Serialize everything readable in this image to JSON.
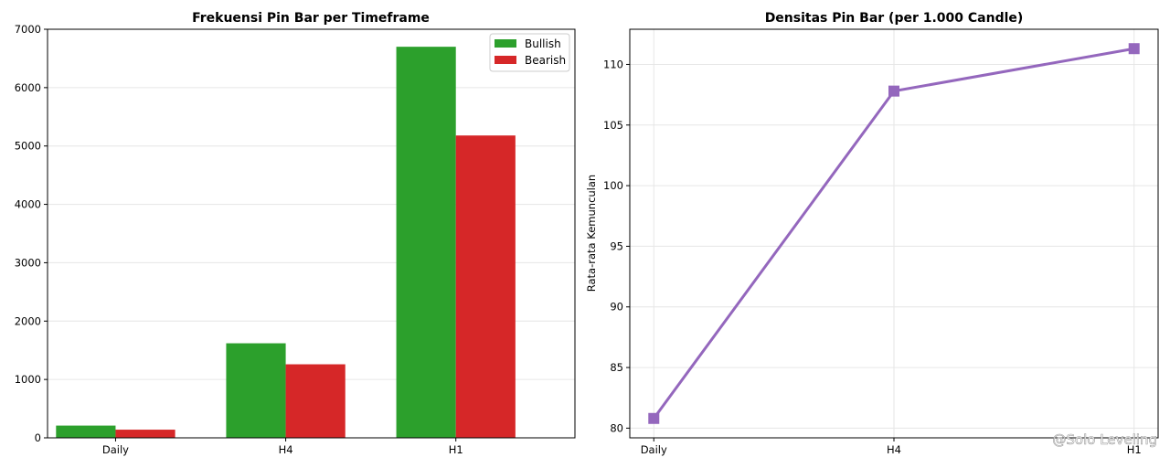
{
  "chart_data": [
    {
      "type": "bar",
      "title": "Frekuensi Pin Bar per Timeframe",
      "xlabel": "",
      "ylabel": "",
      "categories": [
        "Daily",
        "H4",
        "H1"
      ],
      "series": [
        {
          "name": "Bullish",
          "color": "#2ca02c",
          "values": [
            210,
            1620,
            6700
          ]
        },
        {
          "name": "Bearish",
          "color": "#d62728",
          "values": [
            140,
            1260,
            5180
          ]
        }
      ],
      "ylim": [
        0,
        7000
      ],
      "yticks": [
        0,
        1000,
        2000,
        3000,
        4000,
        5000,
        6000,
        7000
      ],
      "grid": true,
      "legend": "top-right"
    },
    {
      "type": "line",
      "title": "Densitas Pin Bar (per 1.000 Candle)",
      "xlabel": "",
      "ylabel": "Rata-rata Kemunculan",
      "categories": [
        "Daily",
        "H4",
        "H1"
      ],
      "series": [
        {
          "color": "#9467bd",
          "marker": "square",
          "values": [
            80.8,
            107.8,
            111.3
          ]
        }
      ],
      "ylim": [
        79.2,
        112.9
      ],
      "yticks": [
        80,
        85,
        90,
        95,
        100,
        105,
        110
      ],
      "grid": true
    }
  ],
  "watermark": "@Solo Leveling"
}
